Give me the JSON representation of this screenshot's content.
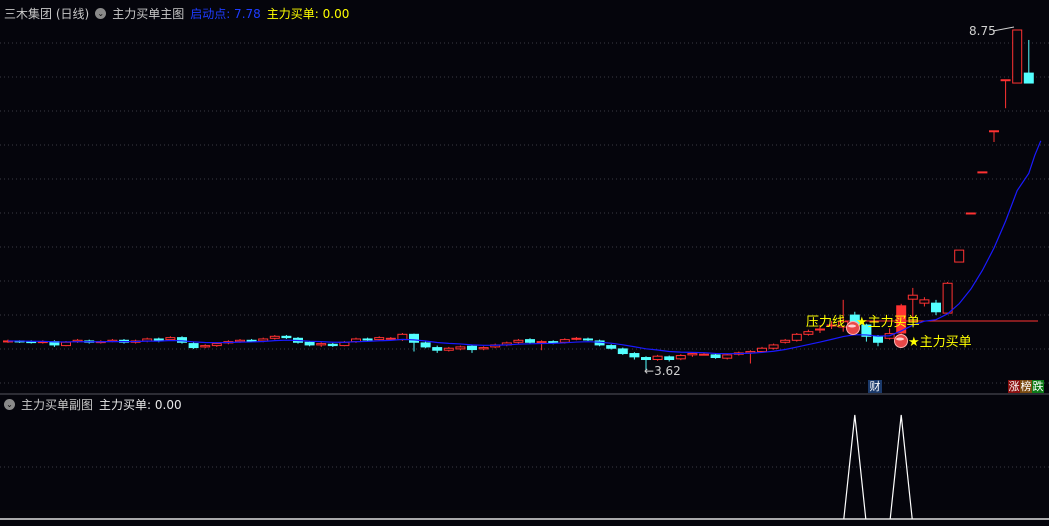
{
  "main_header": {
    "stock": "三木集团 (日线)",
    "indicator": "主力买单主图",
    "start_label": "启动点: 7.78",
    "buy_label": "主力买单: 0.00"
  },
  "sub_header": {
    "indicator": "主力买单副图",
    "buy_label": "主力买单: 0.00"
  },
  "annotations": {
    "high_label": "8.75",
    "low_label": "3.62",
    "pressure_label": "压力线",
    "buy_signal_1": "★主力买单",
    "buy_signal_2": "★主力买单"
  },
  "badges": {
    "finance": "财",
    "rise": "涨",
    "rank": "榜",
    "fall": "跌"
  },
  "colors": {
    "up": "#ff3232",
    "down": "#54ffff",
    "ma": "#1a1aff",
    "label": "#ffff00",
    "start": "#1e3cff"
  },
  "candles": [
    [
      4.05,
      4.06,
      4.08,
      4.03
    ],
    [
      4.06,
      4.05,
      4.07,
      4.03
    ],
    [
      4.05,
      4.04,
      4.07,
      4.02
    ],
    [
      4.04,
      4.05,
      4.07,
      4.02
    ],
    [
      4.05,
      4.0,
      4.07,
      3.97
    ],
    [
      3.99,
      4.04,
      4.06,
      3.98
    ],
    [
      4.05,
      4.07,
      4.09,
      4.03
    ],
    [
      4.06,
      4.04,
      4.08,
      4.02
    ],
    [
      4.04,
      4.05,
      4.07,
      4.02
    ],
    [
      4.05,
      4.07,
      4.09,
      4.04
    ],
    [
      4.07,
      4.04,
      4.09,
      4.02
    ],
    [
      4.04,
      4.06,
      4.08,
      4.02
    ],
    [
      4.06,
      4.09,
      4.11,
      4.04
    ],
    [
      4.09,
      4.06,
      4.11,
      4.04
    ],
    [
      4.08,
      4.11,
      4.13,
      4.06
    ],
    [
      4.11,
      4.04,
      4.13,
      4.02
    ],
    [
      4.02,
      3.96,
      4.05,
      3.94
    ],
    [
      3.97,
      3.99,
      4.01,
      3.95
    ],
    [
      3.99,
      4.02,
      4.04,
      3.97
    ],
    [
      4.03,
      4.05,
      4.07,
      4.01
    ],
    [
      4.05,
      4.07,
      4.09,
      4.03
    ],
    [
      4.07,
      4.06,
      4.09,
      4.04
    ],
    [
      4.06,
      4.09,
      4.11,
      4.04
    ],
    [
      4.1,
      4.13,
      4.15,
      4.08
    ],
    [
      4.13,
      4.11,
      4.15,
      4.09
    ],
    [
      4.1,
      4.04,
      4.12,
      4.02
    ],
    [
      4.04,
      4.0,
      4.06,
      3.98
    ],
    [
      4.0,
      4.02,
      4.04,
      3.97
    ],
    [
      4.01,
      3.99,
      4.03,
      3.97
    ],
    [
      3.99,
      4.04,
      4.06,
      3.98
    ],
    [
      4.05,
      4.09,
      4.11,
      4.03
    ],
    [
      4.09,
      4.08,
      4.11,
      4.06
    ],
    [
      4.08,
      4.11,
      4.13,
      4.06
    ],
    [
      4.1,
      4.1,
      4.12,
      4.08
    ],
    [
      4.08,
      4.16,
      4.18,
      4.06
    ],
    [
      4.16,
      4.04,
      4.17,
      3.9
    ],
    [
      4.03,
      3.97,
      4.05,
      3.95
    ],
    [
      3.96,
      3.92,
      3.99,
      3.88
    ],
    [
      3.92,
      3.95,
      3.97,
      3.9
    ],
    [
      3.94,
      3.97,
      3.99,
      3.92
    ],
    [
      3.98,
      3.93,
      4.0,
      3.88
    ],
    [
      3.94,
      3.96,
      3.98,
      3.92
    ],
    [
      3.97,
      4.0,
      4.02,
      3.95
    ],
    [
      4.0,
      4.03,
      4.05,
      3.98
    ],
    [
      4.04,
      4.07,
      4.09,
      4.02
    ],
    [
      4.08,
      4.04,
      4.1,
      4.02
    ],
    [
      4.04,
      4.05,
      4.07,
      3.92
    ],
    [
      4.05,
      4.03,
      4.07,
      4.01
    ],
    [
      4.04,
      4.08,
      4.1,
      4.02
    ],
    [
      4.09,
      4.1,
      4.12,
      4.07
    ],
    [
      4.09,
      4.08,
      4.11,
      4.06
    ],
    [
      4.06,
      4.0,
      4.08,
      3.98
    ],
    [
      3.99,
      3.95,
      4.01,
      3.93
    ],
    [
      3.94,
      3.87,
      3.96,
      3.85
    ],
    [
      3.87,
      3.82,
      3.89,
      3.78
    ],
    [
      3.81,
      3.78,
      3.83,
      3.62
    ],
    [
      3.78,
      3.83,
      3.85,
      3.76
    ],
    [
      3.82,
      3.78,
      3.84,
      3.75
    ],
    [
      3.79,
      3.84,
      3.86,
      3.77
    ],
    [
      3.85,
      3.87,
      3.89,
      3.82
    ],
    [
      3.86,
      3.86,
      3.88,
      3.84
    ],
    [
      3.85,
      3.81,
      3.87,
      3.79
    ],
    [
      3.8,
      3.85,
      3.87,
      3.78
    ],
    [
      3.86,
      3.88,
      3.9,
      3.84
    ],
    [
      3.88,
      3.9,
      3.92,
      3.72
    ],
    [
      3.9,
      3.95,
      3.97,
      3.88
    ],
    [
      3.95,
      4.0,
      4.02,
      3.93
    ],
    [
      4.04,
      4.07,
      4.09,
      4.02
    ],
    [
      4.07,
      4.16,
      4.18,
      4.05
    ],
    [
      4.16,
      4.2,
      4.23,
      4.14
    ],
    [
      4.24,
      4.24,
      4.3,
      4.18
    ],
    [
      4.3,
      4.3,
      4.36,
      4.24
    ],
    [
      4.27,
      4.35,
      4.68,
      4.2
    ],
    [
      4.45,
      4.3,
      4.5,
      4.2
    ],
    [
      4.3,
      4.13,
      4.32,
      4.05
    ],
    [
      4.13,
      4.04,
      4.15,
      3.98
    ],
    [
      4.1,
      4.17,
      4.25,
      4.08
    ],
    [
      4.18,
      4.59,
      4.62,
      4.16
    ],
    [
      4.69,
      4.75,
      4.86,
      4.38
    ],
    [
      4.63,
      4.68,
      4.72,
      4.58
    ],
    [
      4.63,
      4.5,
      4.68,
      4.45
    ],
    [
      4.48,
      4.93,
      4.95,
      4.46
    ],
    [
      5.25,
      5.43,
      5.43,
      5.25
    ],
    [
      5.99,
      5.99,
      5.99,
      5.99
    ],
    [
      6.61,
      6.61,
      6.61,
      6.61
    ],
    [
      7.23,
      7.23,
      7.23,
      7.06
    ],
    [
      8.0,
      8.0,
      8.0,
      7.57
    ],
    [
      7.95,
      8.75,
      8.75,
      7.95
    ],
    [
      8.1,
      7.95,
      8.6,
      7.95
    ]
  ],
  "pressure_price": 4.36,
  "sub_signals": [
    73,
    77
  ]
}
